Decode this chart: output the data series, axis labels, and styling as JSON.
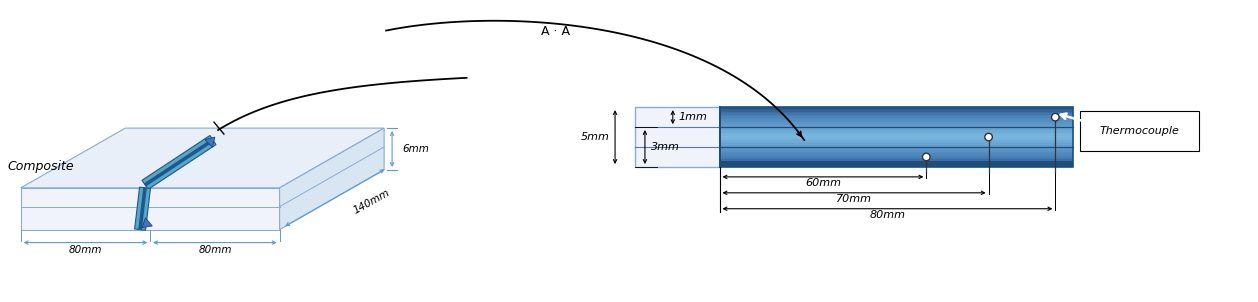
{
  "fig_width": 12.58,
  "fig_height": 3.02,
  "dpi": 100,
  "bg_color": "#ffffff",
  "composite_label": "Composite",
  "thermocouple_label": "Thermocouple",
  "aa_label": "A · A",
  "dim_6mm": "6mm",
  "dim_140mm": "140mm",
  "dim_80mm_left": "80mm",
  "dim_80mm_right": "80mm",
  "dim_5mm": "5mm",
  "dim_3mm": "3mm",
  "dim_1mm": "1mm",
  "dim_60mm": "60mm",
  "dim_70mm": "70mm",
  "dim_80mm_cross": "80mm",
  "dim_color_left": "#5b9bd5",
  "text_color": "#000000",
  "box_top_color": "#e8eff8",
  "box_front_color": "#f0f4fa",
  "box_right_color": "#d8e5f2",
  "box_edge_color": "#8aaacf",
  "slit_teal": "#5ba3c9",
  "slit_dark": "#1a5a8a",
  "bar_dark_edge": "#1e4d7a",
  "bar_mid": "#4472c4",
  "bar_light": "#9dc3e6",
  "left_cap_color": "#dce8f5",
  "left_cap_edge": "#8aaacf"
}
